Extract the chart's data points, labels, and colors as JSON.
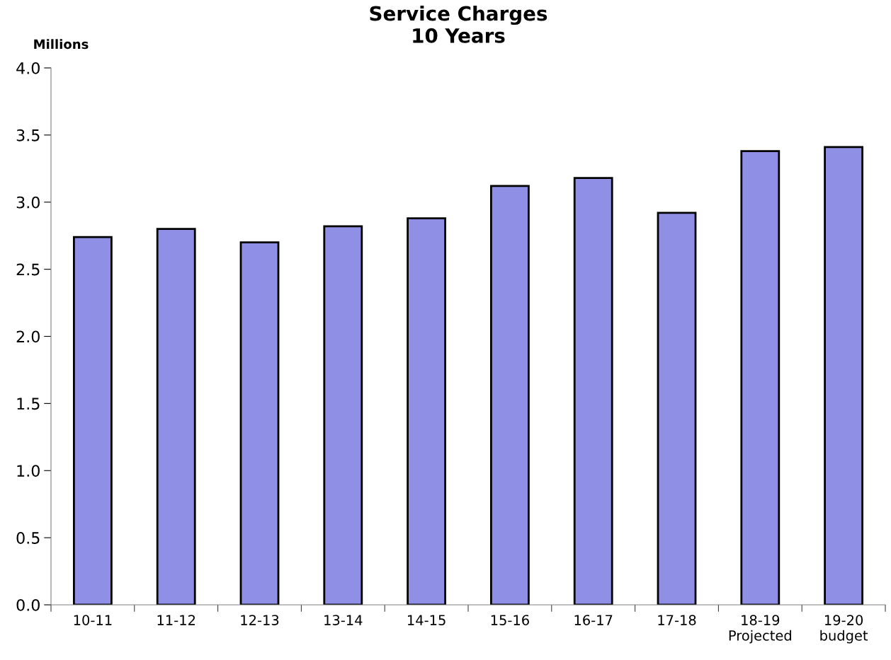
{
  "chart_data": {
    "type": "bar",
    "title": "Service Charges\n10 Years",
    "ylabel": "Millions",
    "categories": [
      "10-11",
      "11-12",
      "12-13",
      "13-14",
      "14-15",
      "15-16",
      "16-17",
      "17-18",
      "18-19\nProjected",
      "19-20\nbudget"
    ],
    "values": [
      2.74,
      2.8,
      2.7,
      2.82,
      2.88,
      3.12,
      3.18,
      2.92,
      3.38,
      3.41
    ],
    "color": "#8f8fe6",
    "ylim": [
      0,
      4
    ],
    "yticks": [
      {
        "value": 0,
        "label": "0.0"
      },
      {
        "value": 0.5,
        "label": "0.5"
      },
      {
        "value": 1,
        "label": "1.0"
      },
      {
        "value": 1.5,
        "label": "1.5"
      },
      {
        "value": 2,
        "label": "2.0"
      },
      {
        "value": 2.5,
        "label": "2.5"
      },
      {
        "value": 3,
        "label": "3.0"
      },
      {
        "value": 3.5,
        "label": "3.5"
      },
      {
        "value": 4,
        "label": "4.0"
      }
    ],
    "grid": false,
    "legend": false
  }
}
